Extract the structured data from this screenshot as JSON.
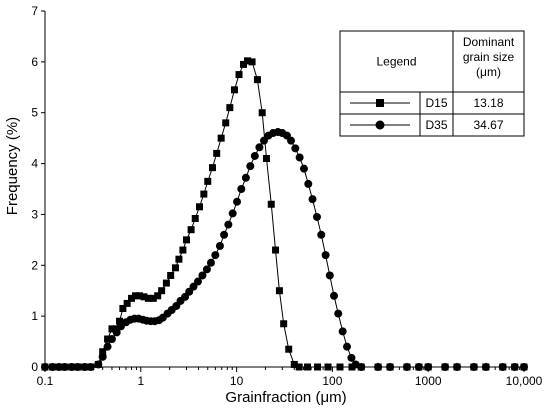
{
  "chart_data": {
    "type": "line",
    "xlabel": "Grainfraction (μm)",
    "ylabel": "Frequency (%)",
    "x_scale": "log",
    "xlim": [
      0.1,
      10000
    ],
    "ylim": [
      0,
      7
    ],
    "x_ticks": [
      0.1,
      1,
      10,
      100,
      1000,
      10000
    ],
    "x_tick_labels": [
      "0.1",
      "1",
      "10",
      "100",
      "1000",
      "10,000"
    ],
    "y_ticks": [
      0,
      1,
      2,
      3,
      4,
      5,
      6,
      7
    ],
    "y_tick_labels": [
      "0",
      "1",
      "2",
      "3",
      "4",
      "5",
      "6",
      "7"
    ],
    "grid": false,
    "legend": {
      "placement": "top-right",
      "header": [
        "Legend",
        "Dominant grain size (μm)"
      ],
      "rows": [
        {
          "series": "D15",
          "marker": "square",
          "value": "13.18"
        },
        {
          "series": "D35",
          "marker": "circle",
          "value": "34.67"
        }
      ]
    },
    "series": [
      {
        "name": "D15",
        "marker": "square",
        "points": [
          [
            0.1,
            0
          ],
          [
            0.12,
            0
          ],
          [
            0.14,
            0
          ],
          [
            0.16,
            0
          ],
          [
            0.19,
            0
          ],
          [
            0.22,
            0
          ],
          [
            0.26,
            0
          ],
          [
            0.3,
            0
          ],
          [
            0.36,
            0.05
          ],
          [
            0.4,
            0.3
          ],
          [
            0.45,
            0.55
          ],
          [
            0.5,
            0.75
          ],
          [
            0.55,
            0.75
          ],
          [
            0.6,
            0.9
          ],
          [
            0.65,
            1.15
          ],
          [
            0.72,
            1.25
          ],
          [
            0.8,
            1.35
          ],
          [
            0.88,
            1.4
          ],
          [
            0.97,
            1.4
          ],
          [
            1.08,
            1.38
          ],
          [
            1.2,
            1.35
          ],
          [
            1.35,
            1.35
          ],
          [
            1.5,
            1.4
          ],
          [
            1.65,
            1.5
          ],
          [
            1.85,
            1.65
          ],
          [
            2.05,
            1.8
          ],
          [
            2.3,
            1.95
          ],
          [
            2.5,
            2.12
          ],
          [
            2.75,
            2.3
          ],
          [
            3.0,
            2.5
          ],
          [
            3.35,
            2.7
          ],
          [
            3.7,
            2.92
          ],
          [
            4.1,
            3.15
          ],
          [
            4.55,
            3.4
          ],
          [
            5.0,
            3.65
          ],
          [
            5.6,
            3.92
          ],
          [
            6.2,
            4.2
          ],
          [
            6.9,
            4.5
          ],
          [
            7.7,
            4.8
          ],
          [
            8.5,
            5.1
          ],
          [
            9.5,
            5.45
          ],
          [
            10.6,
            5.75
          ],
          [
            11.8,
            5.95
          ],
          [
            13.0,
            6.02
          ],
          [
            14.5,
            6.0
          ],
          [
            16.5,
            5.65
          ],
          [
            18.5,
            5.0
          ],
          [
            20.5,
            4.1
          ],
          [
            23,
            3.2
          ],
          [
            25.5,
            2.3
          ],
          [
            28,
            1.5
          ],
          [
            31,
            0.85
          ],
          [
            35,
            0.35
          ],
          [
            40,
            0.05
          ],
          [
            45,
            0
          ],
          [
            55,
            0
          ],
          [
            70,
            0
          ],
          [
            90,
            0
          ],
          [
            120,
            0
          ],
          [
            160,
            0
          ],
          [
            200,
            0
          ],
          [
            300,
            0
          ],
          [
            400,
            0
          ],
          [
            600,
            0
          ],
          [
            800,
            0
          ],
          [
            1000,
            0
          ],
          [
            1500,
            0
          ],
          [
            2000,
            0
          ],
          [
            3000,
            0
          ],
          [
            4000,
            0
          ],
          [
            6000,
            0
          ],
          [
            8000,
            0
          ],
          [
            10000,
            0
          ]
        ]
      },
      {
        "name": "D35",
        "marker": "circle",
        "points": [
          [
            0.1,
            0
          ],
          [
            0.12,
            0
          ],
          [
            0.14,
            0
          ],
          [
            0.16,
            0
          ],
          [
            0.19,
            0
          ],
          [
            0.22,
            0
          ],
          [
            0.26,
            0
          ],
          [
            0.3,
            0
          ],
          [
            0.36,
            0.05
          ],
          [
            0.4,
            0.2
          ],
          [
            0.45,
            0.4
          ],
          [
            0.5,
            0.55
          ],
          [
            0.56,
            0.68
          ],
          [
            0.62,
            0.8
          ],
          [
            0.7,
            0.88
          ],
          [
            0.78,
            0.93
          ],
          [
            0.86,
            0.95
          ],
          [
            0.95,
            0.95
          ],
          [
            1.05,
            0.93
          ],
          [
            1.15,
            0.91
          ],
          [
            1.27,
            0.9
          ],
          [
            1.4,
            0.9
          ],
          [
            1.55,
            0.92
          ],
          [
            1.7,
            0.97
          ],
          [
            1.9,
            1.05
          ],
          [
            2.1,
            1.12
          ],
          [
            2.35,
            1.2
          ],
          [
            2.6,
            1.3
          ],
          [
            2.9,
            1.38
          ],
          [
            3.2,
            1.48
          ],
          [
            3.55,
            1.58
          ],
          [
            3.95,
            1.68
          ],
          [
            4.4,
            1.8
          ],
          [
            4.9,
            1.92
          ],
          [
            5.4,
            2.05
          ],
          [
            6.0,
            2.2
          ],
          [
            6.7,
            2.38
          ],
          [
            7.4,
            2.6
          ],
          [
            8.2,
            2.8
          ],
          [
            9.1,
            3.02
          ],
          [
            10.1,
            3.25
          ],
          [
            11.2,
            3.5
          ],
          [
            12.5,
            3.72
          ],
          [
            13.9,
            3.95
          ],
          [
            15.5,
            4.15
          ],
          [
            17.3,
            4.32
          ],
          [
            19.3,
            4.45
          ],
          [
            21.5,
            4.55
          ],
          [
            24,
            4.6
          ],
          [
            27,
            4.62
          ],
          [
            30,
            4.6
          ],
          [
            33.5,
            4.55
          ],
          [
            37,
            4.45
          ],
          [
            41,
            4.3
          ],
          [
            45.5,
            4.12
          ],
          [
            50.5,
            3.9
          ],
          [
            56,
            3.6
          ],
          [
            62,
            3.3
          ],
          [
            69,
            2.95
          ],
          [
            76.5,
            2.6
          ],
          [
            85,
            2.2
          ],
          [
            94,
            1.8
          ],
          [
            104,
            1.4
          ],
          [
            115,
            1.05
          ],
          [
            128,
            0.7
          ],
          [
            142,
            0.4
          ],
          [
            158,
            0.18
          ],
          [
            175,
            0.05
          ],
          [
            200,
            0
          ],
          [
            300,
            0
          ],
          [
            400,
            0
          ],
          [
            600,
            0
          ],
          [
            800,
            0
          ],
          [
            1000,
            0
          ],
          [
            1500,
            0
          ],
          [
            2000,
            0
          ],
          [
            3000,
            0
          ],
          [
            4000,
            0
          ],
          [
            6000,
            0
          ],
          [
            8000,
            0
          ],
          [
            10000,
            0
          ]
        ]
      }
    ]
  }
}
